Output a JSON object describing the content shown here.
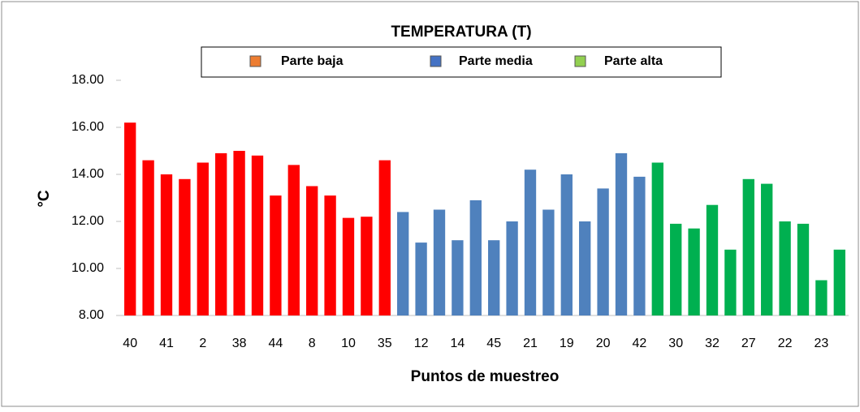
{
  "chart_data": {
    "type": "bar",
    "title": "TEMPERATURA (T)",
    "xlabel": "Puntos de muestreo",
    "ylabel": "°C",
    "categories": [
      "40",
      null,
      "41",
      null,
      "2",
      null,
      "38",
      null,
      "44",
      null,
      "8",
      null,
      "10",
      null,
      "35",
      null,
      "12",
      null,
      "14",
      null,
      "45",
      null,
      "21",
      null,
      "19",
      null,
      "20",
      null,
      "42",
      null,
      "30",
      null,
      "32",
      null,
      "27",
      null,
      "22",
      null,
      "23",
      null
    ],
    "series": [
      {
        "name": "Parte baja",
        "color": "#ff0000",
        "legend_color": "#ed7d31",
        "values": [
          16.2,
          14.6,
          14.0,
          13.8,
          14.5,
          14.9,
          15.0,
          14.8,
          13.1,
          14.4,
          13.5,
          13.1,
          12.15,
          12.2,
          14.6,
          null,
          null,
          null,
          null,
          null,
          null,
          null,
          null,
          null,
          null,
          null,
          null,
          null,
          null,
          null,
          null,
          null,
          null,
          null,
          null,
          null,
          null,
          null,
          null,
          null
        ]
      },
      {
        "name": "Parte media",
        "color": "#4f81bd",
        "legend_color": "#4472c4",
        "values": [
          null,
          null,
          null,
          null,
          null,
          null,
          null,
          null,
          null,
          null,
          null,
          null,
          null,
          null,
          null,
          12.4,
          11.1,
          12.5,
          11.2,
          12.9,
          11.2,
          12.0,
          14.2,
          12.5,
          14.0,
          12.0,
          13.4,
          14.9,
          13.9,
          null,
          null,
          null,
          null,
          null,
          null,
          null,
          null,
          null,
          null,
          null
        ]
      },
      {
        "name": "Parte alta",
        "color": "#00b050",
        "legend_color": "#92d050",
        "values": [
          null,
          null,
          null,
          null,
          null,
          null,
          null,
          null,
          null,
          null,
          null,
          null,
          null,
          null,
          null,
          null,
          null,
          null,
          null,
          null,
          null,
          null,
          null,
          null,
          null,
          null,
          null,
          null,
          null,
          14.5,
          11.9,
          11.7,
          12.7,
          10.8,
          13.8,
          13.6,
          12.0,
          11.9,
          9.5,
          10.8
        ]
      }
    ],
    "ylim": [
      8,
      18
    ],
    "yticks": [
      {
        "value": 8,
        "label": "8.00"
      },
      {
        "value": 10,
        "label": "10.00"
      },
      {
        "value": 12,
        "label": "12.00"
      },
      {
        "value": 14,
        "label": "14.00"
      },
      {
        "value": 16,
        "label": "16.00"
      },
      {
        "value": 18,
        "label": "18.00"
      }
    ],
    "grid": false
  }
}
